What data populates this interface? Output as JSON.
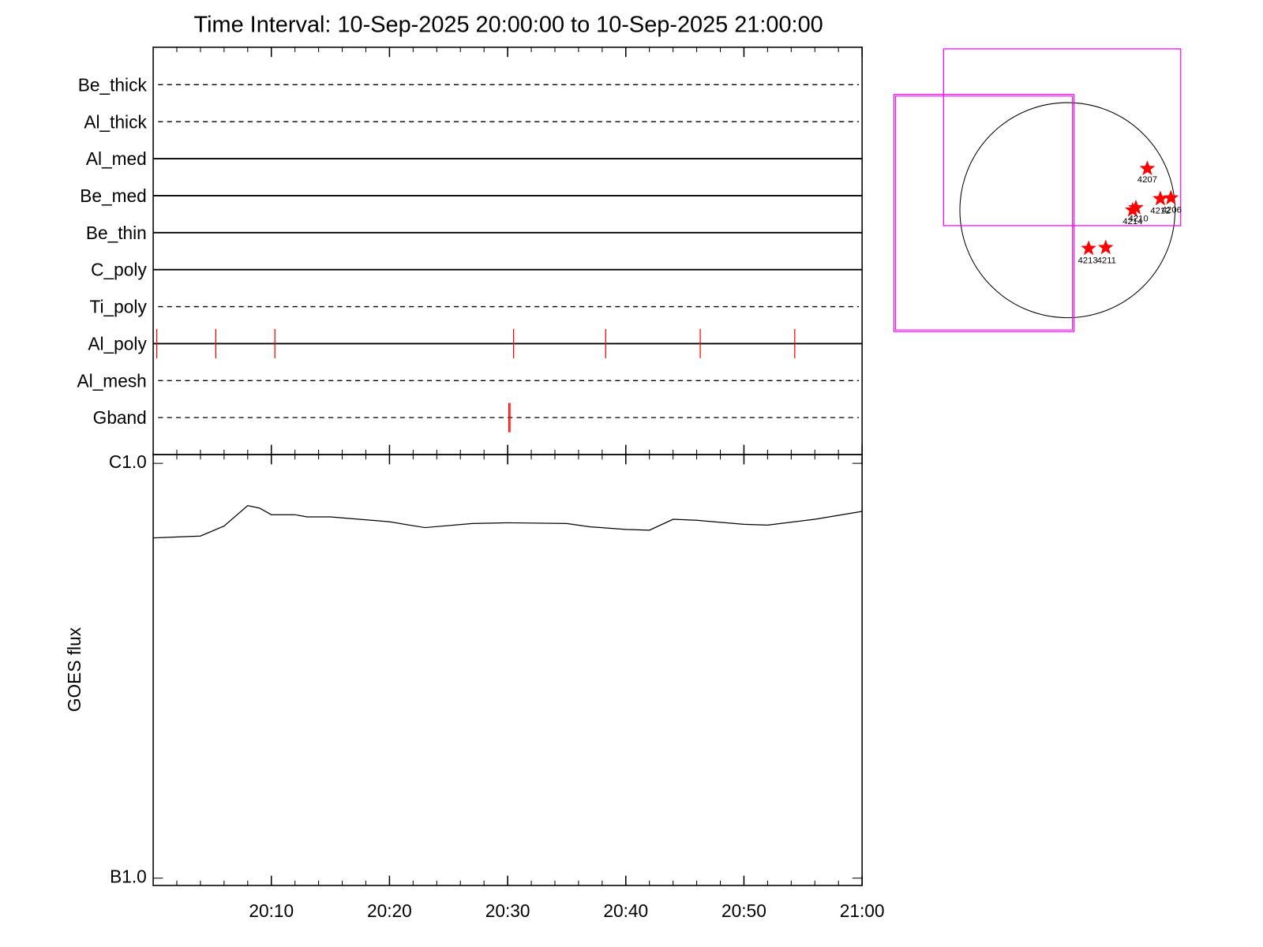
{
  "title": "Time Interval: 10-Sep-2025 20:00:00 to 10-Sep-2025 21:00:00",
  "chart_data": [
    {
      "type": "events",
      "xlim": [
        0,
        60
      ],
      "event_color": "#ff0000",
      "filters": [
        {
          "name": "Be_thick",
          "style": "dashed",
          "events": []
        },
        {
          "name": "Al_thick",
          "style": "dashed",
          "events": []
        },
        {
          "name": "Al_med",
          "style": "solid",
          "events": []
        },
        {
          "name": "Be_med",
          "style": "solid",
          "events": []
        },
        {
          "name": "Be_thin",
          "style": "solid",
          "events": []
        },
        {
          "name": "C_poly",
          "style": "solid",
          "events": []
        },
        {
          "name": "Ti_poly",
          "style": "dashed",
          "events": []
        },
        {
          "name": "Al_poly",
          "style": "solid",
          "events": [
            0.3,
            5.3,
            10.3,
            30.5,
            38.3,
            46.3,
            54.3
          ]
        },
        {
          "name": "Al_mesh",
          "style": "dashed",
          "events": []
        },
        {
          "name": "Gband",
          "style": "dashed",
          "events": [
            30.1,
            30.2
          ]
        }
      ]
    },
    {
      "type": "line",
      "ylabel": "GOES flux",
      "log_y": true,
      "color": "#000000",
      "xlim": [
        0,
        60
      ],
      "xticks": [
        {
          "value": 10,
          "label": "20:10"
        },
        {
          "value": 20,
          "label": "20:20"
        },
        {
          "value": 30,
          "label": "20:30"
        },
        {
          "value": 40,
          "label": "20:40"
        },
        {
          "value": 50,
          "label": "20:50"
        },
        {
          "value": 60,
          "label": "21:00"
        }
      ],
      "ylim": [
        9.6e-08,
        1.05e-06
      ],
      "yticks": [
        {
          "value": 1e-06,
          "label": "C1.0"
        },
        {
          "value": 1e-07,
          "label": "B1.0"
        }
      ],
      "x": [
        0,
        4,
        6,
        8,
        9,
        10,
        12,
        13,
        15,
        20,
        23,
        27,
        30,
        35,
        37,
        40,
        42,
        44,
        46,
        50,
        52,
        56,
        60
      ],
      "values": [
        6.61e-07,
        6.68e-07,
        7.06e-07,
        7.91e-07,
        7.8e-07,
        7.52e-07,
        7.52e-07,
        7.43e-07,
        7.43e-07,
        7.23e-07,
        7e-07,
        7.16e-07,
        7.19e-07,
        7.16e-07,
        7.03e-07,
        6.93e-07,
        6.9e-07,
        7.33e-07,
        7.29e-07,
        7.13e-07,
        7.1e-07,
        7.33e-07,
        7.66e-07
      ]
    }
  ],
  "map": {
    "star_color": "#ff0000",
    "box_color": "#ff00ff",
    "regions": [
      "4207",
      "4214",
      "4210",
      "4212",
      "4206",
      "4213",
      "4211"
    ]
  }
}
